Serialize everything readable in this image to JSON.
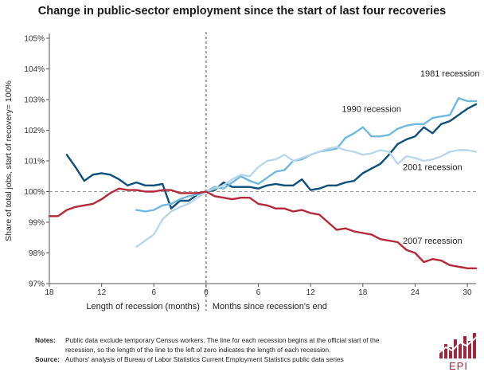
{
  "title": "Change in public-sector employment since the start of last four recoveries",
  "chart_data": {
    "type": "line",
    "ylabel": "Share of total jobs, start of recovery= 100%",
    "xlabel_left": "Length of recession (months)",
    "xlabel_right": "Months since recession's end",
    "xlim": [
      -18,
      31
    ],
    "ylim": [
      97,
      105
    ],
    "x_ticks": [
      -18,
      -12,
      -6,
      0,
      6,
      12,
      18,
      24,
      30
    ],
    "x_tick_labels": [
      "18",
      "12",
      "6",
      "0",
      "6",
      "12",
      "18",
      "24",
      "30"
    ],
    "y_ticks": [
      97,
      98,
      99,
      100,
      101,
      102,
      103,
      104,
      105
    ],
    "y_tick_labels": [
      "97%",
      "98%",
      "99%",
      "100%",
      "101%",
      "102%",
      "103%",
      "104%",
      "105%"
    ],
    "reference_line": 100,
    "grid": false,
    "series": [
      {
        "name": "1981 recession",
        "color": "#0b4f7c",
        "x": [
          -16,
          -15,
          -14,
          -13,
          -12,
          -11,
          -10,
          -9,
          -8,
          -7,
          -6,
          -5,
          -4,
          -3,
          -2,
          -1,
          0,
          1,
          2,
          3,
          4,
          5,
          6,
          7,
          8,
          9,
          10,
          11,
          12,
          13,
          14,
          15,
          16,
          17,
          18,
          19,
          20,
          21,
          22,
          23,
          24,
          25,
          26,
          27,
          28,
          29,
          30,
          31
        ],
        "y": [
          101.2,
          100.8,
          100.35,
          100.55,
          100.6,
          100.55,
          100.4,
          100.2,
          100.3,
          100.2,
          100.2,
          100.25,
          99.45,
          99.7,
          99.7,
          99.9,
          100.0,
          100.05,
          100.3,
          100.15,
          100.15,
          100.15,
          100.1,
          100.2,
          100.25,
          100.2,
          100.2,
          100.4,
          100.05,
          100.1,
          100.2,
          100.2,
          100.3,
          100.35,
          100.6,
          100.75,
          100.9,
          101.2,
          101.55,
          101.7,
          101.8,
          102.1,
          101.9,
          102.2,
          102.3,
          102.5,
          102.7,
          102.85
        ]
      },
      {
        "name": "1990 recession",
        "color": "#6fb8e0",
        "x": [
          -8,
          -7,
          -6,
          -5,
          -4,
          -3,
          -2,
          -1,
          0,
          1,
          2,
          3,
          4,
          5,
          6,
          7,
          8,
          9,
          10,
          11,
          12,
          13,
          14,
          15,
          16,
          17,
          18,
          19,
          20,
          21,
          22,
          23,
          24,
          25,
          26,
          27,
          28,
          29,
          30,
          31
        ],
        "y": [
          99.4,
          99.35,
          99.4,
          99.55,
          99.6,
          99.75,
          99.85,
          99.9,
          100.0,
          100.15,
          100.1,
          100.3,
          100.5,
          100.35,
          100.25,
          100.45,
          100.65,
          100.7,
          101.0,
          101.05,
          101.2,
          101.3,
          101.35,
          101.4,
          101.75,
          101.9,
          102.1,
          101.8,
          101.8,
          101.85,
          102.05,
          102.15,
          102.2,
          102.2,
          102.4,
          102.45,
          102.5,
          103.05,
          102.95,
          102.95
        ]
      },
      {
        "name": "2001 recession",
        "color": "#b8d8ea",
        "x": [
          -8,
          -7,
          -6,
          -5,
          -4,
          -3,
          -2,
          -1,
          0,
          1,
          2,
          3,
          4,
          5,
          6,
          7,
          8,
          9,
          10,
          11,
          12,
          13,
          14,
          15,
          16,
          17,
          18,
          19,
          20,
          21,
          22,
          23,
          24,
          25,
          26,
          27,
          28,
          29,
          30,
          31
        ],
        "y": [
          98.2,
          98.4,
          98.6,
          99.1,
          99.35,
          99.5,
          99.6,
          99.8,
          100.0,
          100.1,
          100.2,
          100.4,
          100.55,
          100.5,
          100.8,
          101.0,
          101.05,
          101.2,
          101.0,
          101.1,
          101.2,
          101.3,
          101.4,
          101.45,
          101.35,
          101.3,
          101.2,
          101.25,
          101.35,
          101.3,
          100.9,
          101.15,
          101.1,
          101.0,
          101.05,
          101.15,
          101.3,
          101.35,
          101.35,
          101.3
        ]
      },
      {
        "name": "2007 recession",
        "color": "#b5283a",
        "x": [
          -18,
          -17,
          -16,
          -15,
          -14,
          -13,
          -12,
          -11,
          -10,
          -9,
          -8,
          -7,
          -6,
          -5,
          -4,
          -3,
          -2,
          -1,
          0,
          1,
          2,
          3,
          4,
          5,
          6,
          7,
          8,
          9,
          10,
          11,
          12,
          13,
          14,
          15,
          16,
          17,
          18,
          19,
          20,
          21,
          22,
          23,
          24,
          25,
          26,
          27,
          28,
          29,
          30,
          31
        ],
        "y": [
          99.2,
          99.2,
          99.4,
          99.5,
          99.55,
          99.6,
          99.75,
          99.95,
          100.1,
          100.05,
          100.05,
          100.0,
          100.0,
          100.05,
          100.05,
          99.95,
          99.95,
          99.95,
          100.0,
          99.85,
          99.8,
          99.75,
          99.8,
          99.8,
          99.6,
          99.55,
          99.45,
          99.45,
          99.35,
          99.4,
          99.3,
          99.25,
          99.0,
          98.75,
          98.8,
          98.7,
          98.65,
          98.6,
          98.45,
          98.4,
          98.35,
          98.1,
          98.0,
          97.7,
          97.8,
          97.75,
          97.6,
          97.55,
          97.5,
          97.5
        ]
      }
    ]
  },
  "notes_label": "Notes:",
  "notes_text": "Public data exclude temporary Census workers. The line for each recession begins at the official start of the recession, so the length of the line to the left of zero indicates the length of each recession.",
  "source_label": "Source:",
  "source_text": "Authors' analysis of Bureau of Labor Statistics Current Employment Statistics public data series",
  "logo_text": "EPI",
  "colors": {
    "logo": "#a0273b",
    "axis": "#555555",
    "reference": "#999999"
  }
}
